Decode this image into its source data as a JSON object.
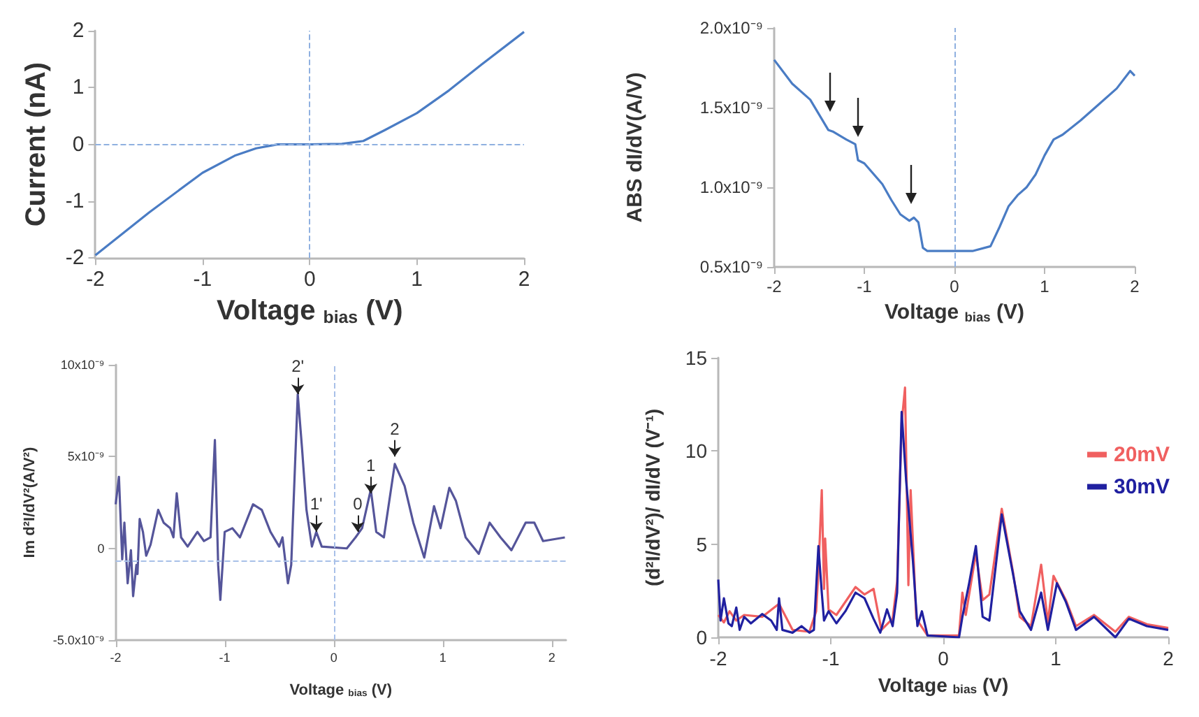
{
  "chart_data": [
    {
      "type": "line",
      "xlabel": "Voltage $_{bias}$ (V)",
      "ylabel": "Current (nA)",
      "xlim": [
        -2,
        2
      ],
      "ylim": [
        -2,
        2
      ],
      "xticks": [
        -2,
        -1,
        0,
        1,
        2
      ],
      "yticks": [
        -2,
        -1,
        0,
        1,
        2
      ],
      "ref_lines": [
        {
          "axis": "x",
          "value": 0,
          "line_style": "dashed",
          "color": "#8fb0e0"
        },
        {
          "axis": "y",
          "value": 0,
          "line_style": "dashed",
          "color": "#8fb0e0"
        }
      ],
      "series": [
        {
          "color": "#4a7cc4",
          "x": [
            -2,
            -1.5,
            -1,
            -0.7,
            -0.5,
            -0.3,
            0,
            0.3,
            0.5,
            0.7,
            1,
            1.3,
            1.6,
            2
          ],
          "values": [
            -1.95,
            -1.2,
            -0.5,
            -0.2,
            -0.07,
            0,
            0,
            0.01,
            0.06,
            0.25,
            0.55,
            0.95,
            1.4,
            1.98
          ]
        }
      ]
    },
    {
      "type": "line",
      "xlabel": "Voltage $_{bias}$ (V)",
      "ylabel": "ABS dI/dV(A/V)",
      "xlim": [
        -2,
        2
      ],
      "ylim": [
        5e-10,
        2e-09
      ],
      "xticks": [
        -2,
        -1,
        0,
        1,
        2
      ],
      "yticks": [
        {
          "value": 5e-10,
          "label": "0.5x10⁻⁹"
        },
        {
          "value": 1e-09,
          "label": "1.0x10⁻⁹"
        },
        {
          "value": 1.5e-09,
          "label": "1.5x10⁻⁹"
        },
        {
          "value": 2e-09,
          "label": "2.0x10⁻⁹"
        }
      ],
      "ref_lines": [
        {
          "axis": "x",
          "value": 0,
          "line_style": "dashed",
          "color": "#8fb0e0"
        }
      ],
      "series": [
        {
          "color": "#4a7cc4",
          "x": [
            -2,
            -1.8,
            -1.6,
            -1.4,
            -1.35,
            -1.2,
            -1.1,
            -1.07,
            -1,
            -0.8,
            -0.7,
            -0.6,
            -0.5,
            -0.45,
            -0.4,
            -0.35,
            -0.3,
            0,
            0.2,
            0.4,
            0.5,
            0.6,
            0.7,
            0.8,
            0.9,
            1,
            1.1,
            1.2,
            1.4,
            1.6,
            1.8,
            1.95,
            2
          ],
          "values": [
            1.8e-09,
            1.65e-09,
            1.55e-09,
            1.36e-09,
            1.35e-09,
            1.3e-09,
            1.27e-09,
            1.17e-09,
            1.15e-09,
            1.02e-09,
            9.2e-10,
            8.3e-10,
            7.9e-10,
            8.1e-10,
            7.8e-10,
            6.2e-10,
            6e-10,
            6e-10,
            6e-10,
            6.3e-10,
            7.5e-10,
            8.8e-10,
            9.5e-10,
            1e-09,
            1.08e-09,
            1.2e-09,
            1.3e-09,
            1.33e-09,
            1.42e-09,
            1.52e-09,
            1.62e-09,
            1.73e-09,
            1.7e-09
          ]
        }
      ]
    },
    {
      "type": "line",
      "xlabel": "Voltage $_{bias}$ (V)",
      "ylabel": "Im d²I/dV²(A/V²)",
      "xlim": [
        -2,
        2.13
      ],
      "ylim": [
        -5e-09,
        1e-08
      ],
      "xticks": [
        -2,
        -1,
        0,
        1,
        2
      ],
      "yticks": [
        {
          "value": -5e-09,
          "label": "-5.0x10⁻⁹"
        },
        0,
        {
          "value": 5e-09,
          "label": "5x10⁻⁹"
        },
        {
          "value": 1e-08,
          "label": "10x10⁻⁹"
        }
      ],
      "ref_lines": [
        {
          "axis": "x",
          "value": 0,
          "line_style": "dashed",
          "color": "#a8c0e8"
        },
        {
          "axis": "y",
          "value": -7e-10,
          "line_style": "dashed",
          "color": "#a8c0e8"
        }
      ],
      "annotations": [
        {
          "text": "2'",
          "x": -0.33,
          "y": 8.4e-09
        },
        {
          "text": "1'",
          "x": -0.16,
          "y": 9e-10
        },
        {
          "text": "0",
          "x": 0.22,
          "y": 9e-10
        },
        {
          "text": "1",
          "x": 0.34,
          "y": 3e-09
        },
        {
          "text": "2",
          "x": 0.56,
          "y": 5e-09
        }
      ],
      "series": [
        {
          "color": "#55559a",
          "x": [
            -2,
            -1.97,
            -1.94,
            -1.92,
            -1.89,
            -1.86,
            -1.84,
            -1.81,
            -1.8,
            -1.78,
            -1.75,
            -1.72,
            -1.68,
            -1.61,
            -1.56,
            -1.5,
            -1.47,
            -1.44,
            -1.4,
            -1.34,
            -1.25,
            -1.19,
            -1.13,
            -1.09,
            -1.06,
            -1.04,
            -1,
            -0.93,
            -0.86,
            -0.74,
            -0.66,
            -0.58,
            -0.5,
            -0.47,
            -0.42,
            -0.39,
            -0.33,
            -0.29,
            -0.25,
            -0.2,
            -0.16,
            -0.11,
            0.12,
            0.2,
            0.26,
            0.34,
            0.39,
            0.46,
            0.56,
            0.65,
            0.73,
            0.83,
            0.92,
            0.98,
            1.06,
            1.12,
            1.21,
            1.33,
            1.43,
            1.53,
            1.63,
            1.76,
            1.84,
            1.92,
            2.12
          ],
          "values": [
            2.4e-09,
            3.9e-09,
            -6e-10,
            1.4e-09,
            -1.9e-09,
            -1e-10,
            -2.6e-09,
            -9e-10,
            -1.4e-09,
            1.6e-09,
            9e-10,
            -4e-10,
            2e-10,
            2.1e-09,
            1.4e-09,
            1.1e-09,
            6e-10,
            3e-09,
            6e-10,
            1e-10,
            9e-10,
            4e-10,
            6e-10,
            5.9e-09,
            -9e-10,
            -2.8e-09,
            9e-10,
            1.1e-09,
            6e-10,
            2.4e-09,
            2.1e-09,
            9e-10,
            1e-10,
            6e-10,
            -1.9e-09,
            -9e-10,
            8.4e-09,
            5.4e-09,
            2.1e-09,
            1e-10,
            9e-10,
            1e-10,
            0,
            6e-10,
            1.1e-09,
            3.2e-09,
            9e-10,
            6e-10,
            4.6e-09,
            3.4e-09,
            1.4e-09,
            -5e-10,
            2.3e-09,
            1.1e-09,
            3.3e-09,
            2.6e-09,
            6e-10,
            -3e-10,
            1.4e-09,
            6e-10,
            -1e-10,
            1.4e-09,
            1.4e-09,
            4e-10,
            6e-10
          ]
        }
      ]
    },
    {
      "type": "line",
      "xlabel": "Voltage $_{bias}$ (V)",
      "ylabel": "(d²I/dV²)/ dI/dV (V⁻¹)",
      "xlim": [
        -2,
        2
      ],
      "ylim": [
        0,
        15
      ],
      "xticks": [
        -2,
        -1,
        0,
        1,
        2
      ],
      "yticks": [
        0,
        5,
        10,
        15
      ],
      "legend": "right",
      "series": [
        {
          "name": "20mV",
          "color": "#f06060",
          "x": [
            -2,
            -1.95,
            -1.9,
            -1.84,
            -1.77,
            -1.61,
            -1.46,
            -1.34,
            -1.19,
            -1.13,
            -1.11,
            -1.08,
            -1.06,
            -1.05,
            -1.02,
            -0.95,
            -0.78,
            -0.7,
            -0.62,
            -0.55,
            -0.45,
            -0.41,
            -0.37,
            -0.34,
            -0.31,
            -0.29,
            -0.24,
            -0.14,
            0.14,
            0.17,
            0.2,
            0.29,
            0.35,
            0.41,
            0.52,
            0.62,
            0.68,
            0.78,
            0.87,
            0.93,
            0.98,
            1.09,
            1.18,
            1.34,
            1.53,
            1.65,
            1.81,
            2
          ],
          "values": [
            1.2,
            0.8,
            1.4,
            0.9,
            1.2,
            1.1,
            1.8,
            0.4,
            0.3,
            1.4,
            3.5,
            7.9,
            2.6,
            5.3,
            1.5,
            1.2,
            2.7,
            2.3,
            2.6,
            0.4,
            1,
            3,
            11.5,
            13.4,
            2.8,
            7.9,
            1,
            0.1,
            0.1,
            2.4,
            1.2,
            4.5,
            2,
            2.3,
            6.9,
            3.5,
            1.1,
            0.6,
            3.9,
            0.8,
            3.3,
            2,
            0.6,
            1.2,
            0.3,
            1.1,
            0.7,
            0.5
          ]
        },
        {
          "name": "30mV",
          "color": "#2020a0",
          "x": [
            -2,
            -1.98,
            -1.95,
            -1.91,
            -1.88,
            -1.84,
            -1.81,
            -1.77,
            -1.71,
            -1.61,
            -1.53,
            -1.48,
            -1.46,
            -1.43,
            -1.34,
            -1.26,
            -1.19,
            -1.15,
            -1.11,
            -1.08,
            -1.06,
            -1.02,
            -0.95,
            -0.87,
            -0.78,
            -0.7,
            -0.62,
            -0.56,
            -0.5,
            -0.45,
            -0.41,
            -0.37,
            -0.33,
            -0.27,
            -0.23,
            -0.19,
            -0.14,
            0.14,
            0.17,
            0.23,
            0.29,
            0.35,
            0.41,
            0.52,
            0.62,
            0.68,
            0.78,
            0.87,
            0.93,
            1.01,
            1.09,
            1.18,
            1.34,
            1.53,
            1.65,
            1.81,
            2
          ],
          "values": [
            3.1,
            0.9,
            2.1,
            0.75,
            0.6,
            1.6,
            0.4,
            1.1,
            0.75,
            1.25,
            0.9,
            0.4,
            2.1,
            0.4,
            0.25,
            0.6,
            0.25,
            0.4,
            4.9,
            2.4,
            0.9,
            1.4,
            0.75,
            1.4,
            2.4,
            2.1,
            1,
            0.25,
            1.5,
            0.6,
            2.4,
            12.1,
            8.4,
            4.1,
            0.6,
            1.4,
            0.1,
            0,
            1.1,
            2.9,
            4.9,
            1.1,
            0.9,
            6.6,
            3.4,
            1.4,
            0.4,
            2.4,
            0.4,
            2.9,
            1.9,
            0.4,
            1.1,
            0,
            1,
            0.6,
            0.4
          ]
        }
      ]
    }
  ]
}
